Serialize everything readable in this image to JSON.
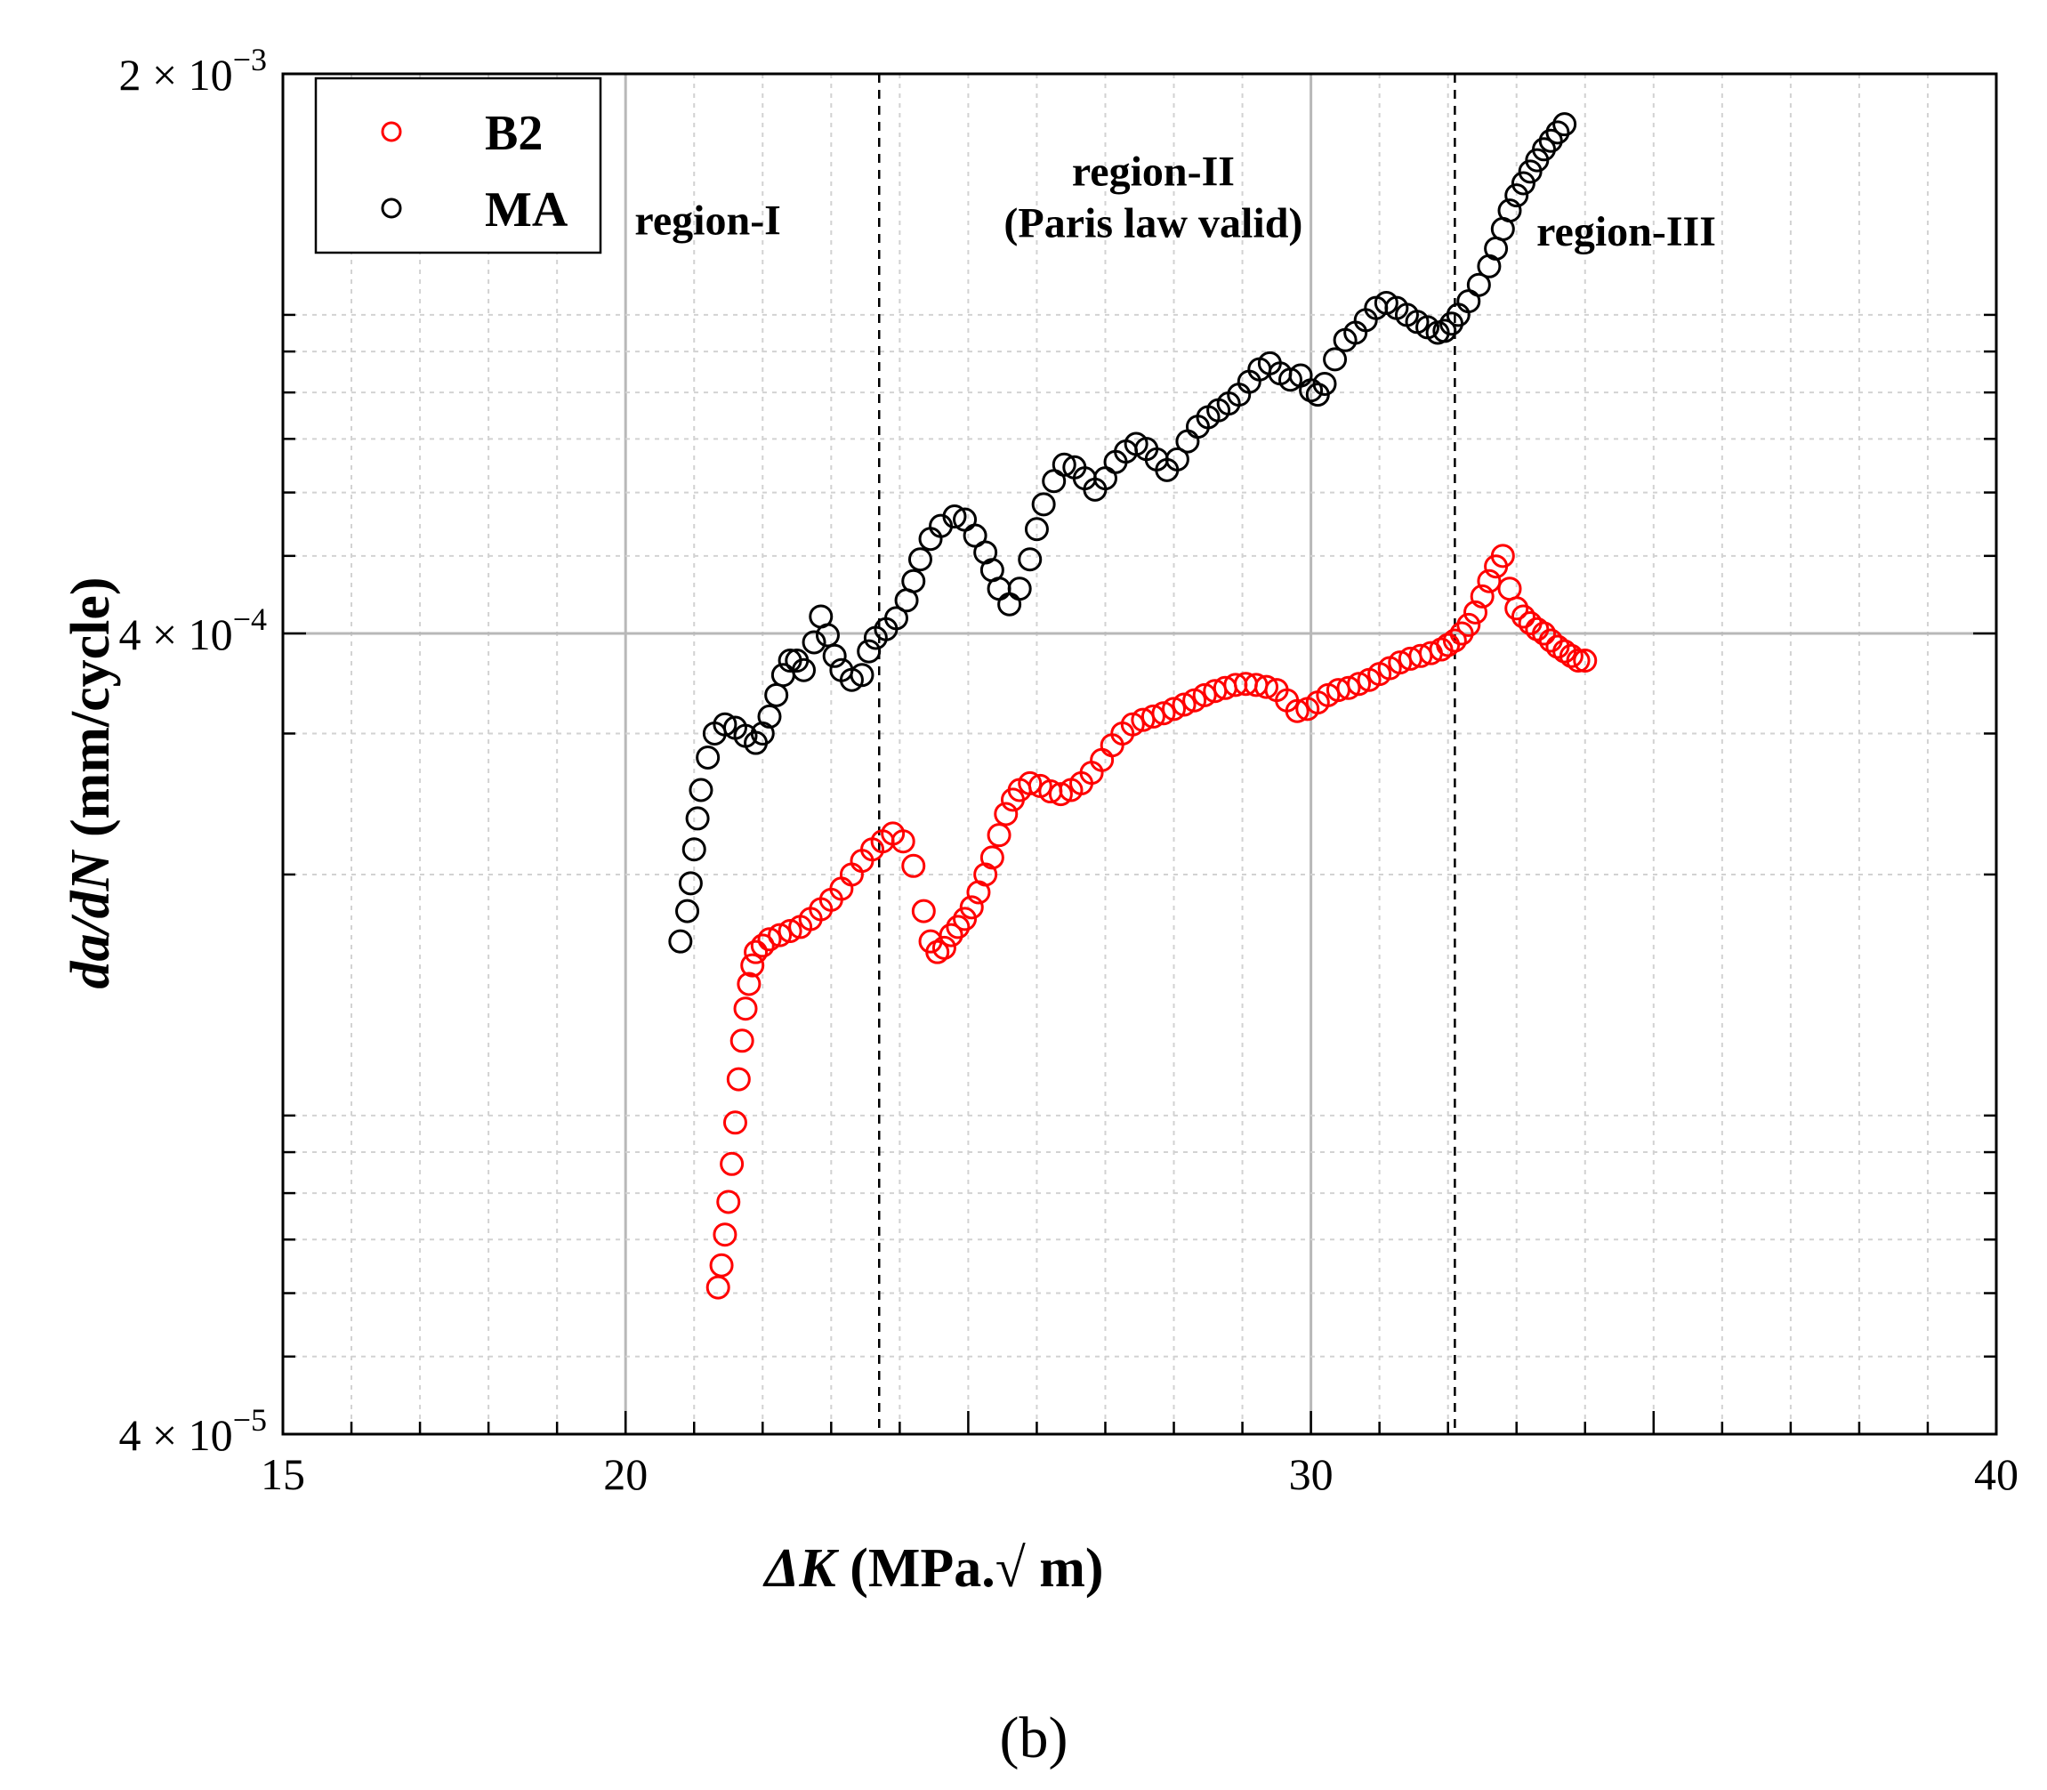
{
  "chart_data": {
    "type": "scatter",
    "title": "",
    "caption": "(b)",
    "xlabel_italic": "ΔK",
    "xlabel_rest": " (MPa.√ m)",
    "ylabel_italic": "da/dN",
    "ylabel_rest": " (mm/cycle)",
    "xlim": [
      15,
      40
    ],
    "ylim": [
      4e-05,
      0.002
    ],
    "yscale": "log",
    "xticks": [
      15,
      20,
      30,
      40
    ],
    "xtick_labels": [
      "15",
      "20",
      "30",
      "40"
    ],
    "ytick_labels": [
      {
        "value": 0.002,
        "mantissa": "2 × 10",
        "exp": "−3"
      },
      {
        "value": 0.0004,
        "mantissa": "4 × 10",
        "exp": "−4"
      },
      {
        "value": 4e-05,
        "mantissa": "4 × 10",
        "exp": "−5"
      }
    ],
    "grid": true,
    "legend": "top-left",
    "region_boundaries": [
      23.7,
      32.1
    ],
    "region_labels": [
      {
        "lines": [
          "region-I"
        ],
        "x": 21.2,
        "y": 0.00126
      },
      {
        "lines": [
          "region-II",
          "(Paris law valid)"
        ],
        "x": 27.7,
        "y": 0.00145
      },
      {
        "lines": [
          "region-III"
        ],
        "x": 34.6,
        "y": 0.00122
      }
    ],
    "series": [
      {
        "name": "MA",
        "color": "#000000",
        "x": [
          20.8,
          20.9,
          20.95,
          21.0,
          21.05,
          21.1,
          21.2,
          21.3,
          21.45,
          21.6,
          21.75,
          21.9,
          22.0,
          22.1,
          22.2,
          22.3,
          22.4,
          22.5,
          22.6,
          22.75,
          22.85,
          22.95,
          23.05,
          23.15,
          23.3,
          23.45,
          23.55,
          23.65,
          23.8,
          23.95,
          24.1,
          24.2,
          24.3,
          24.45,
          24.6,
          24.8,
          24.95,
          25.1,
          25.25,
          25.35,
          25.45,
          25.6,
          25.75,
          25.9,
          26.0,
          26.1,
          26.25,
          26.4,
          26.55,
          26.7,
          26.85,
          27.0,
          27.15,
          27.3,
          27.45,
          27.6,
          27.75,
          27.9,
          28.05,
          28.2,
          28.35,
          28.5,
          28.65,
          28.8,
          28.95,
          29.1,
          29.25,
          29.4,
          29.55,
          29.7,
          29.85,
          30.0,
          30.1,
          30.2,
          30.35,
          30.5,
          30.65,
          30.8,
          30.95,
          31.1,
          31.25,
          31.4,
          31.55,
          31.7,
          31.85,
          31.95,
          32.05,
          32.15,
          32.3,
          32.45,
          32.6,
          32.7,
          32.8,
          32.9,
          33.0,
          33.1,
          33.2,
          33.3,
          33.4,
          33.5,
          33.6,
          33.7
        ],
        "y": [
          0.000165,
          0.00018,
          0.000195,
          0.000215,
          0.000235,
          0.000255,
          0.00028,
          0.0003,
          0.000308,
          0.000305,
          0.000298,
          0.000292,
          0.0003,
          0.000315,
          0.000335,
          0.000355,
          0.00037,
          0.00037,
          0.00036,
          0.00039,
          0.00042,
          0.000398,
          0.000375,
          0.00036,
          0.00035,
          0.000355,
          0.00038,
          0.000395,
          0.000405,
          0.000418,
          0.00044,
          0.000465,
          0.000495,
          0.000525,
          0.000545,
          0.00056,
          0.000555,
          0.00053,
          0.000505,
          0.00048,
          0.000455,
          0.000435,
          0.000455,
          0.000495,
          0.00054,
          0.00058,
          0.00062,
          0.00065,
          0.000645,
          0.000625,
          0.000605,
          0.000625,
          0.000655,
          0.000675,
          0.00069,
          0.00068,
          0.00066,
          0.00064,
          0.00066,
          0.000695,
          0.000725,
          0.000745,
          0.00076,
          0.000775,
          0.000795,
          0.000825,
          0.000855,
          0.00087,
          0.000845,
          0.00083,
          0.00084,
          0.000805,
          0.000795,
          0.00082,
          0.00088,
          0.00093,
          0.00095,
          0.000985,
          0.00102,
          0.001035,
          0.00102,
          0.001,
          0.00098,
          0.000965,
          0.00095,
          0.000955,
          0.000975,
          0.001,
          0.00104,
          0.00109,
          0.00115,
          0.00121,
          0.00128,
          0.00135,
          0.00141,
          0.00146,
          0.00151,
          0.00156,
          0.00161,
          0.00165,
          0.00169,
          0.00173
        ]
      },
      {
        "name": "B2",
        "color": "#ff0000",
        "x": [
          21.35,
          21.4,
          21.45,
          21.5,
          21.55,
          21.6,
          21.65,
          21.7,
          21.75,
          21.8,
          21.85,
          21.9,
          22.0,
          22.1,
          22.25,
          22.4,
          22.55,
          22.7,
          22.85,
          23.0,
          23.15,
          23.3,
          23.45,
          23.6,
          23.75,
          23.9,
          24.05,
          24.2,
          24.35,
          24.45,
          24.55,
          24.65,
          24.75,
          24.85,
          24.95,
          25.05,
          25.15,
          25.25,
          25.35,
          25.45,
          25.55,
          25.65,
          25.75,
          25.9,
          26.05,
          26.2,
          26.35,
          26.5,
          26.65,
          26.8,
          26.95,
          27.1,
          27.25,
          27.4,
          27.55,
          27.7,
          27.85,
          28.0,
          28.15,
          28.3,
          28.45,
          28.6,
          28.75,
          28.9,
          29.05,
          29.2,
          29.35,
          29.5,
          29.65,
          29.8,
          29.95,
          30.1,
          30.25,
          30.4,
          30.55,
          30.7,
          30.85,
          31.0,
          31.15,
          31.3,
          31.45,
          31.6,
          31.75,
          31.9,
          32.0,
          32.1,
          32.2,
          32.3,
          32.4,
          32.5,
          32.6,
          32.7,
          32.8,
          32.9,
          33.0,
          33.1,
          33.2,
          33.3,
          33.4,
          33.5,
          33.6,
          33.7,
          33.8,
          33.9,
          34.0
        ],
        "y": [
          6.1e-05,
          6.5e-05,
          7.1e-05,
          7.8e-05,
          8.7e-05,
          9.8e-05,
          0.000111,
          0.000124,
          0.000136,
          0.000146,
          0.000154,
          0.00016,
          0.000163,
          0.000166,
          0.000168,
          0.00017,
          0.000172,
          0.000176,
          0.000181,
          0.000186,
          0.000192,
          0.0002,
          0.000208,
          0.000215,
          0.00022,
          0.000225,
          0.00022,
          0.000205,
          0.00018,
          0.000165,
          0.00016,
          0.000162,
          0.000168,
          0.000172,
          0.000176,
          0.000182,
          0.00019,
          0.0002,
          0.00021,
          0.000224,
          0.000238,
          0.000248,
          0.000255,
          0.00026,
          0.000258,
          0.000254,
          0.000252,
          0.000255,
          0.00026,
          0.000268,
          0.000278,
          0.00029,
          0.0003,
          0.000308,
          0.000312,
          0.000315,
          0.000318,
          0.000322,
          0.000326,
          0.00033,
          0.000335,
          0.000339,
          0.000342,
          0.000345,
          0.000346,
          0.000345,
          0.000343,
          0.00034,
          0.00033,
          0.00032,
          0.000322,
          0.000328,
          0.000335,
          0.00034,
          0.000342,
          0.000346,
          0.00035,
          0.000356,
          0.000362,
          0.000368,
          0.000372,
          0.000375,
          0.000378,
          0.000382,
          0.000387,
          0.000392,
          0.0004,
          0.00041,
          0.000425,
          0.000445,
          0.000465,
          0.000485,
          0.0005,
          0.000455,
          0.00043,
          0.00042,
          0.000412,
          0.000405,
          0.0004,
          0.000392,
          0.000385,
          0.00038,
          0.000375,
          0.00037,
          0.00037
        ]
      }
    ]
  }
}
